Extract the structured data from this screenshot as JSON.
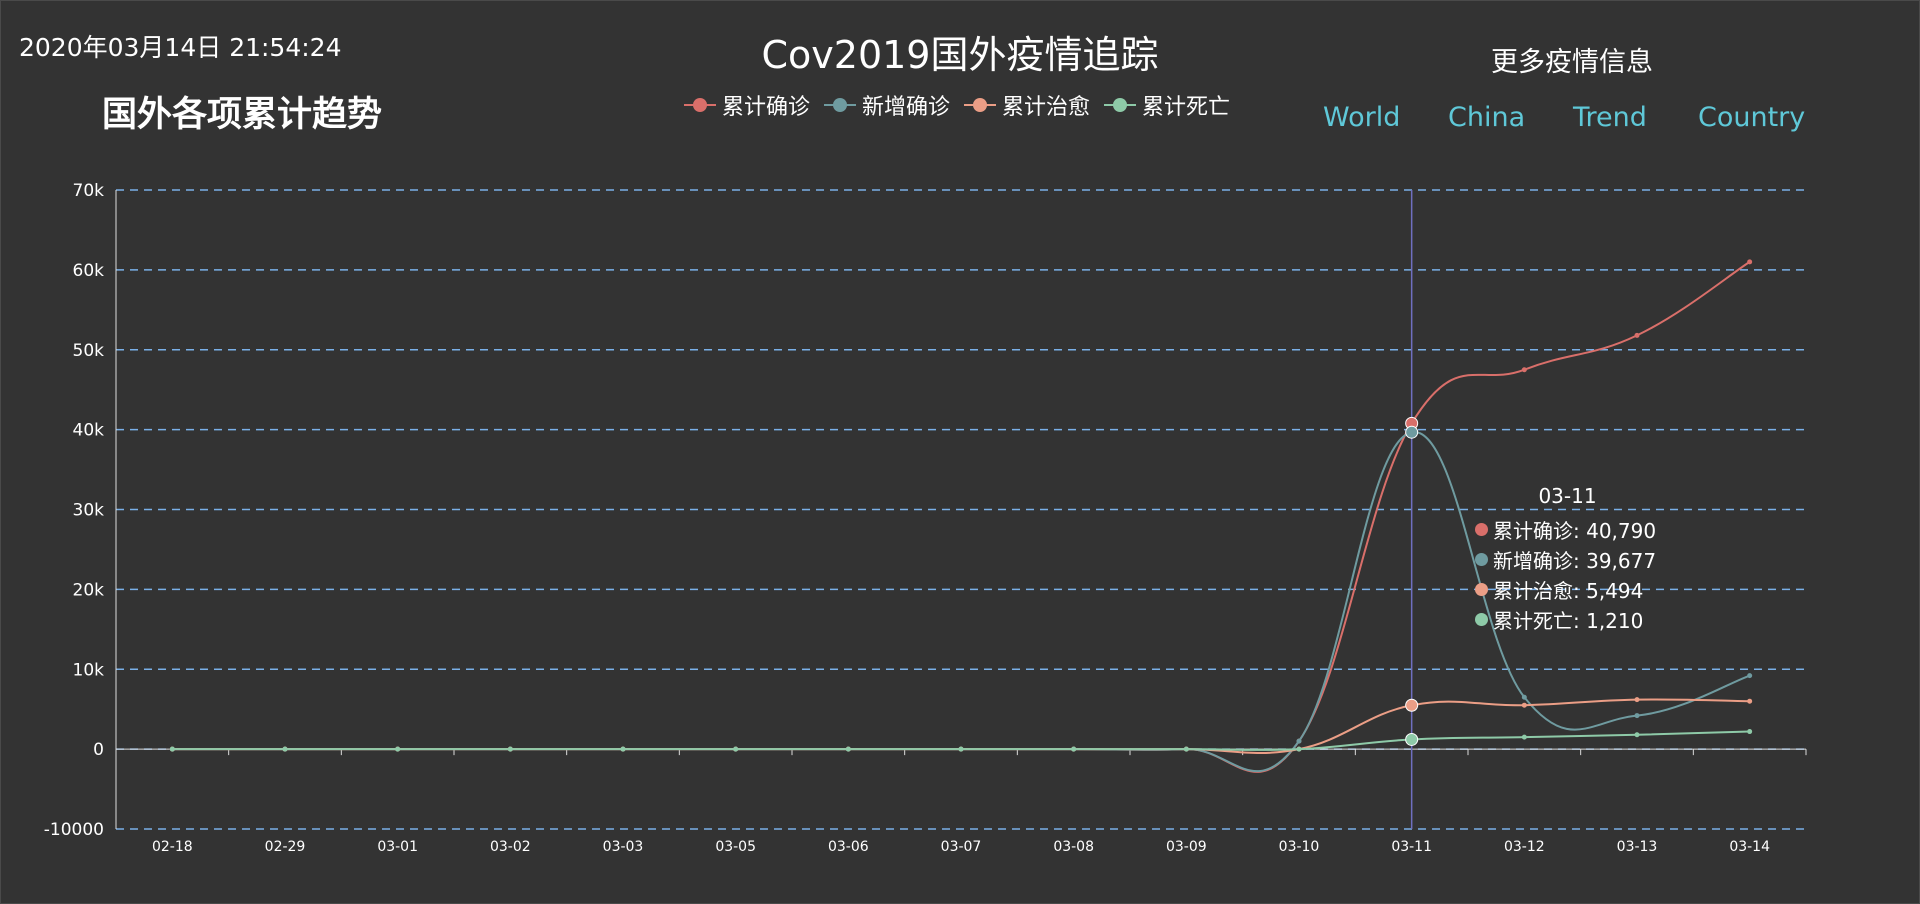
{
  "header": {
    "datetime": "2020年03月14日 21:54:24",
    "title": "Cov2019国外疫情追踪",
    "subtitle": "国外各项累计趋势",
    "more_info": "更多疫情信息"
  },
  "nav": {
    "world": "World",
    "china": "China",
    "trend": "Trend",
    "country": "Country"
  },
  "colors": {
    "background": "#333333",
    "grid": "#7ab0e8",
    "nav_link": "#5fc8d8",
    "cursor_line": "#6f6fc0"
  },
  "chart_data": {
    "type": "line",
    "categories": [
      "02-18",
      "02-29",
      "03-01",
      "03-02",
      "03-03",
      "03-05",
      "03-06",
      "03-07",
      "03-08",
      "03-09",
      "03-10",
      "03-11",
      "03-12",
      "03-13",
      "03-14"
    ],
    "ylim": [
      -10000,
      70000
    ],
    "yticks": [
      -10000,
      0,
      10000,
      20000,
      30000,
      40000,
      50000,
      60000,
      70000
    ],
    "ytick_labels": [
      "-10000",
      "0",
      "10k",
      "20k",
      "30k",
      "40k",
      "50k",
      "60k",
      "70k"
    ],
    "grid": true,
    "smooth": true,
    "legend_position": "top-center",
    "series": [
      {
        "name": "累计确诊",
        "color": "#d96f6a",
        "values": [
          0,
          0,
          0,
          0,
          0,
          0,
          0,
          0,
          0,
          0,
          1000,
          40790,
          47500,
          51800,
          61000
        ]
      },
      {
        "name": "新增确诊",
        "color": "#6f9ba0",
        "values": [
          0,
          0,
          0,
          0,
          0,
          0,
          0,
          0,
          0,
          0,
          1000,
          39677,
          6500,
          4200,
          9200
        ]
      },
      {
        "name": "累计治愈",
        "color": "#eb9e86",
        "values": [
          0,
          0,
          0,
          0,
          0,
          0,
          0,
          0,
          0,
          0,
          0,
          5494,
          5500,
          6200,
          6000
        ]
      },
      {
        "name": "累计死亡",
        "color": "#8ecaa8",
        "values": [
          0,
          0,
          0,
          0,
          0,
          0,
          0,
          0,
          0,
          0,
          0,
          1210,
          1500,
          1800,
          2200
        ]
      }
    ],
    "tooltip": {
      "category": "03-11",
      "rows": [
        {
          "label": "累计确诊: 40,790",
          "color": "#d96f6a"
        },
        {
          "label": "新增确诊: 39,677",
          "color": "#6f9ba0"
        },
        {
          "label": "累计治愈: 5,494",
          "color": "#eb9e86"
        },
        {
          "label": "累计死亡: 1,210",
          "color": "#8ecaa8"
        }
      ]
    }
  }
}
